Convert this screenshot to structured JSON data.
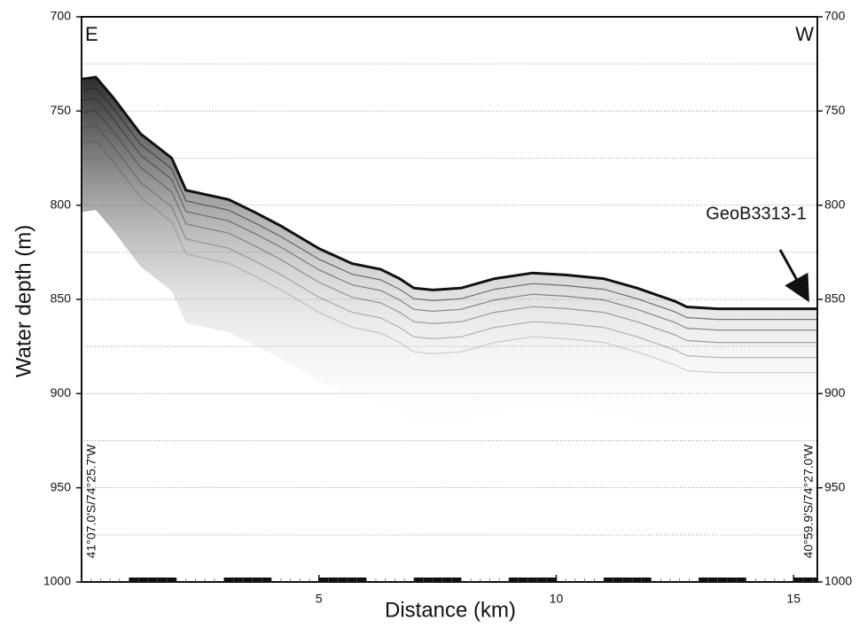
{
  "chart_data": {
    "type": "line",
    "x_label": "Distance (km)",
    "y_label": "Water depth (m)",
    "annotations": {
      "left_end": "E",
      "right_end": "W",
      "core": "GeoB3313-1",
      "start_position": "41°07.0'S/74°25.7'W",
      "end_position": "40°59.9'S/74°27.0'W"
    },
    "x": [
      0.02,
      0.3,
      0.67,
      1.24,
      1.9,
      2.2,
      2.55,
      3.1,
      3.67,
      4.2,
      5,
      5.7,
      6.3,
      6.7,
      7.0,
      7.4,
      8,
      8.7,
      9.5,
      10.2,
      11,
      11.7,
      12.5,
      12.75,
      13.4,
      14.3,
      15.5
    ],
    "values": [
      733,
      732,
      743,
      762,
      775,
      792,
      794,
      797,
      804,
      811,
      823,
      831,
      834,
      839,
      844,
      845,
      844,
      839,
      836,
      837,
      839,
      844,
      851,
      854,
      855,
      855,
      855
    ],
    "color": "#111111",
    "xlim": [
      0,
      15.5
    ],
    "xticks": [
      5,
      10,
      15
    ],
    "ylim": [
      700,
      1000
    ],
    "y_inverted": true,
    "yticks": [
      700,
      750,
      800,
      850,
      900,
      950,
      1000
    ],
    "y_gridlines": [
      725,
      750,
      775,
      800,
      825,
      850,
      875,
      900,
      925,
      950,
      975
    ],
    "grid": true
  }
}
